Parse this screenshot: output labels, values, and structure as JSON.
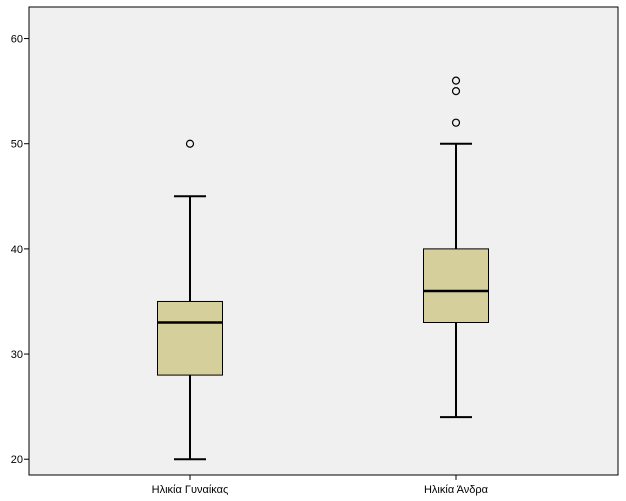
{
  "chart_data": {
    "type": "boxplot",
    "title": "",
    "xlabel": "",
    "ylabel": "",
    "ylim": [
      18.5,
      63
    ],
    "yticks": [
      20,
      30,
      40,
      50,
      60
    ],
    "grid": false,
    "legend": "none",
    "box_color": "#d4cf9b",
    "background_color": "#f0f0f0",
    "categories": [
      "Ηλικία Γυναίκας",
      "Ηλικία Άνδρα"
    ],
    "boxes": [
      {
        "category": "Ηλικία Γυναίκας",
        "whisker_low": 20,
        "q1": 28,
        "median": 33,
        "q3": 35,
        "whisker_high": 45,
        "outliers": [
          50
        ]
      },
      {
        "category": "Ηλικία Άνδρα",
        "whisker_low": 24,
        "q1": 33,
        "median": 36,
        "q3": 40,
        "whisker_high": 50,
        "outliers": [
          52,
          55,
          56
        ]
      }
    ]
  }
}
